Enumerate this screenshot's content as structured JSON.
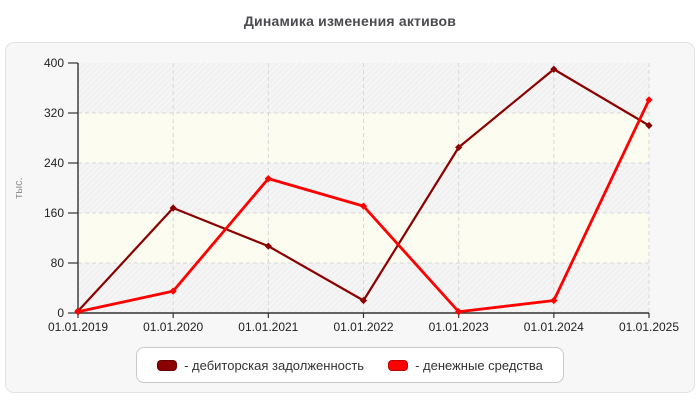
{
  "page": {
    "title": "Динамика изменения активов"
  },
  "chart_data": {
    "type": "line",
    "title": "Динамика изменения активов",
    "categories": [
      "01.01.2019",
      "01.01.2020",
      "01.01.2021",
      "01.01.2022",
      "01.01.2023",
      "01.01.2024",
      "01.01.2025"
    ],
    "series": [
      {
        "name": "дебиторская задолженность",
        "color": "#8b0000",
        "values": [
          3,
          168,
          107,
          20,
          265,
          390,
          300
        ]
      },
      {
        "name": "денежные средства",
        "color": "#ff0000",
        "values": [
          2,
          35,
          215,
          171,
          2,
          20,
          341
        ]
      }
    ],
    "xlabel": "",
    "ylabel": "тыс.",
    "ylim": [
      0,
      400
    ],
    "yticks": [
      0,
      80,
      160,
      240,
      320,
      400
    ],
    "grid": "dashed",
    "legend_position": "bottom",
    "marker": "diamond",
    "plot_band_colors": [
      "#f1f1f1",
      "#fbfbee"
    ],
    "hatch": "diagonal-white"
  },
  "legend": {
    "items": [
      {
        "label": "- дебиторская задолженность",
        "color": "#8b0000"
      },
      {
        "label": "- денежные средства",
        "color": "#ff0000"
      }
    ]
  },
  "colors": {
    "title": "#4a4a4f",
    "axis": "#333333",
    "tick_label": "#222222",
    "ylabel": "#909090",
    "gridline": "#d8d8d8",
    "panel_bg": "#f7f7f7",
    "panel_border": "#e2e2e2"
  }
}
